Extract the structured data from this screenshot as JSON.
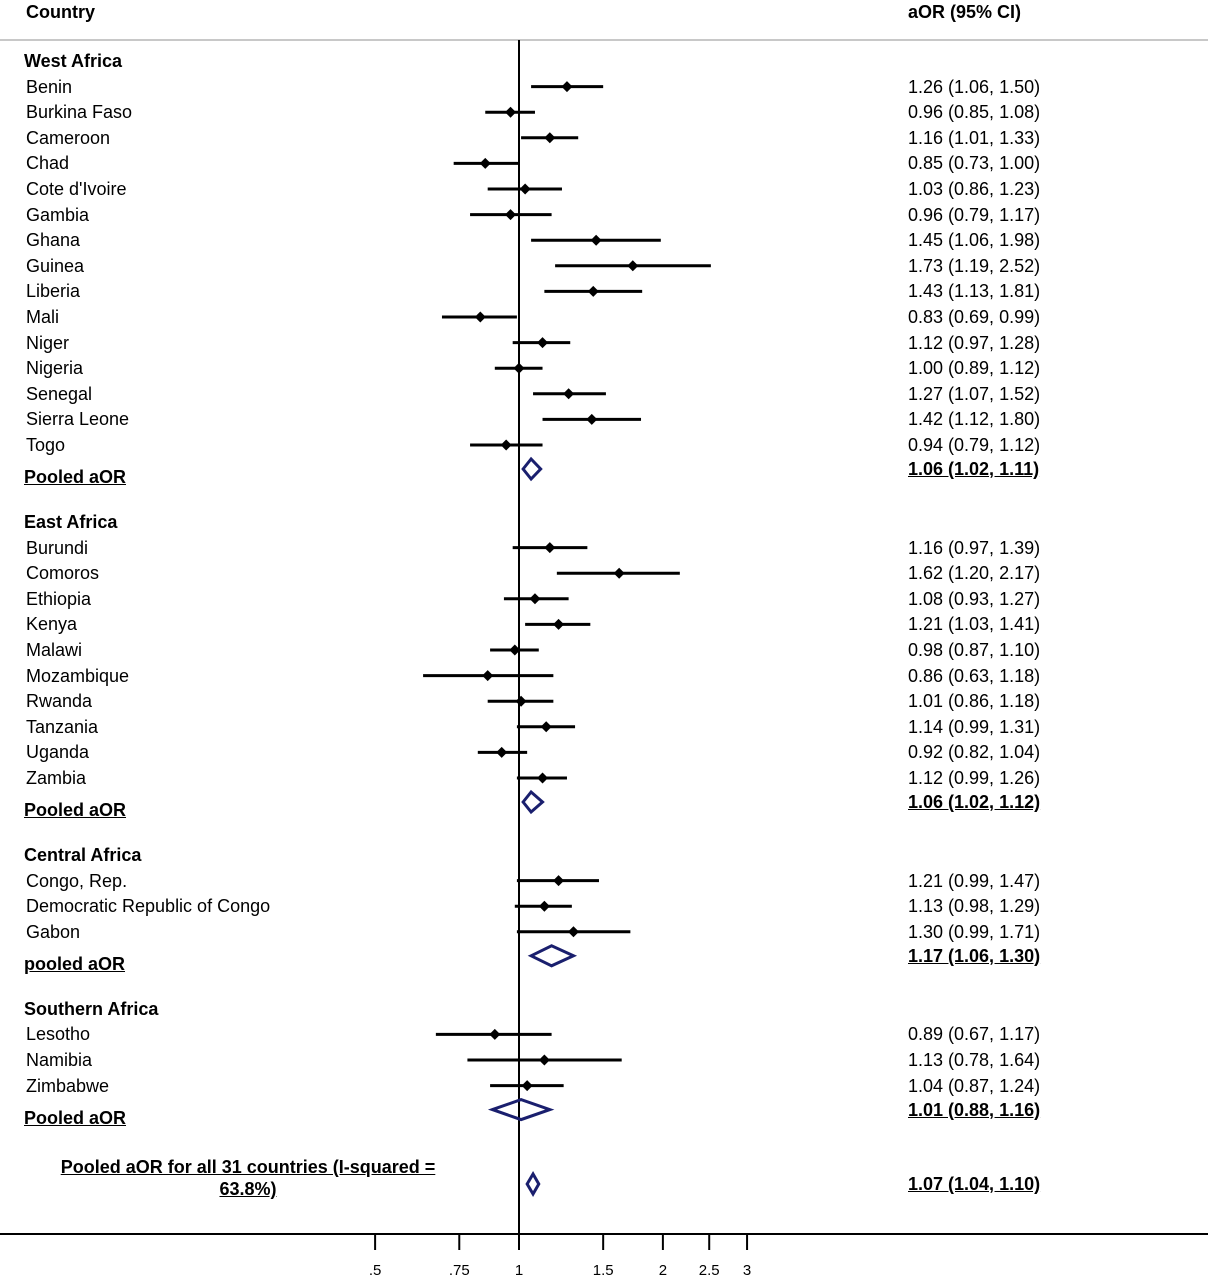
{
  "chart_data": {
    "type": "forest",
    "x_scale": "log",
    "reference_line": 1,
    "columns": {
      "label": "Country",
      "value": "aOR (95% CI)"
    },
    "x_ticks": [
      {
        "v": 0.5,
        "label": ".5"
      },
      {
        "v": 0.75,
        "label": ".75"
      },
      {
        "v": 1,
        "label": "1"
      },
      {
        "v": 1.5,
        "label": "1.5"
      },
      {
        "v": 2,
        "label": "2"
      },
      {
        "v": 2.5,
        "label": "2.5"
      },
      {
        "v": 3,
        "label": "3"
      }
    ],
    "rows": [
      {
        "kind": "group",
        "label": "West Africa"
      },
      {
        "kind": "study",
        "label": "Benin",
        "est": 1.26,
        "lo": 1.06,
        "hi": 1.5,
        "text": "1.26 (1.06, 1.50)"
      },
      {
        "kind": "study",
        "label": "Burkina Faso",
        "est": 0.96,
        "lo": 0.85,
        "hi": 1.08,
        "text": "0.96 (0.85, 1.08)"
      },
      {
        "kind": "study",
        "label": "Cameroon",
        "est": 1.16,
        "lo": 1.01,
        "hi": 1.33,
        "text": "1.16 (1.01, 1.33)"
      },
      {
        "kind": "study",
        "label": "Chad",
        "est": 0.85,
        "lo": 0.73,
        "hi": 1.0,
        "text": "0.85 (0.73, 1.00)"
      },
      {
        "kind": "study",
        "label": "Cote d'Ivoire",
        "est": 1.03,
        "lo": 0.86,
        "hi": 1.23,
        "text": "1.03 (0.86, 1.23)"
      },
      {
        "kind": "study",
        "label": "Gambia",
        "est": 0.96,
        "lo": 0.79,
        "hi": 1.17,
        "text": "0.96 (0.79, 1.17)"
      },
      {
        "kind": "study",
        "label": "Ghana",
        "est": 1.45,
        "lo": 1.06,
        "hi": 1.98,
        "text": "1.45 (1.06, 1.98)"
      },
      {
        "kind": "study",
        "label": "Guinea",
        "est": 1.73,
        "lo": 1.19,
        "hi": 2.52,
        "text": "1.73 (1.19, 2.52)"
      },
      {
        "kind": "study",
        "label": "Liberia",
        "est": 1.43,
        "lo": 1.13,
        "hi": 1.81,
        "text": "1.43 (1.13, 1.81)"
      },
      {
        "kind": "study",
        "label": "Mali",
        "est": 0.83,
        "lo": 0.69,
        "hi": 0.99,
        "text": "0.83 (0.69, 0.99)"
      },
      {
        "kind": "study",
        "label": "Niger",
        "est": 1.12,
        "lo": 0.97,
        "hi": 1.28,
        "text": "1.12 (0.97, 1.28)"
      },
      {
        "kind": "study",
        "label": "Nigeria",
        "est": 1.0,
        "lo": 0.89,
        "hi": 1.12,
        "text": "1.00 (0.89, 1.12)"
      },
      {
        "kind": "study",
        "label": "Senegal",
        "est": 1.27,
        "lo": 1.07,
        "hi": 1.52,
        "text": "1.27 (1.07, 1.52)"
      },
      {
        "kind": "study",
        "label": "Sierra Leone",
        "est": 1.42,
        "lo": 1.12,
        "hi": 1.8,
        "text": "1.42 (1.12, 1.80)"
      },
      {
        "kind": "study",
        "label": "Togo",
        "est": 0.94,
        "lo": 0.79,
        "hi": 1.12,
        "text": "0.94 (0.79, 1.12)"
      },
      {
        "kind": "pooled",
        "label": "Pooled aOR",
        "est": 1.06,
        "lo": 1.02,
        "hi": 1.11,
        "text": "1.06 (1.02, 1.11)"
      },
      {
        "kind": "group",
        "label": "East Africa"
      },
      {
        "kind": "study",
        "label": "Burundi",
        "est": 1.16,
        "lo": 0.97,
        "hi": 1.39,
        "text": "1.16 (0.97, 1.39)"
      },
      {
        "kind": "study",
        "label": "Comoros",
        "est": 1.62,
        "lo": 1.2,
        "hi": 2.17,
        "text": "1.62 (1.20, 2.17)"
      },
      {
        "kind": "study",
        "label": "Ethiopia",
        "est": 1.08,
        "lo": 0.93,
        "hi": 1.27,
        "text": "1.08 (0.93, 1.27)"
      },
      {
        "kind": "study",
        "label": "Kenya",
        "est": 1.21,
        "lo": 1.03,
        "hi": 1.41,
        "text": "1.21 (1.03, 1.41)"
      },
      {
        "kind": "study",
        "label": "Malawi",
        "est": 0.98,
        "lo": 0.87,
        "hi": 1.1,
        "text": "0.98 (0.87, 1.10)"
      },
      {
        "kind": "study",
        "label": "Mozambique",
        "est": 0.86,
        "lo": 0.63,
        "hi": 1.18,
        "text": "0.86 (0.63, 1.18)"
      },
      {
        "kind": "study",
        "label": "Rwanda",
        "est": 1.01,
        "lo": 0.86,
        "hi": 1.18,
        "text": "1.01 (0.86, 1.18)"
      },
      {
        "kind": "study",
        "label": "Tanzania",
        "est": 1.14,
        "lo": 0.99,
        "hi": 1.31,
        "text": "1.14 (0.99, 1.31)"
      },
      {
        "kind": "study",
        "label": "Uganda",
        "est": 0.92,
        "lo": 0.82,
        "hi": 1.04,
        "text": "0.92 (0.82, 1.04)"
      },
      {
        "kind": "study",
        "label": "Zambia",
        "est": 1.12,
        "lo": 0.99,
        "hi": 1.26,
        "text": "1.12 (0.99, 1.26)"
      },
      {
        "kind": "pooled",
        "label": "Pooled aOR",
        "est": 1.06,
        "lo": 1.02,
        "hi": 1.12,
        "text": "1.06 (1.02, 1.12)"
      },
      {
        "kind": "group",
        "label": "Central Africa"
      },
      {
        "kind": "study",
        "label": "Congo, Rep.",
        "est": 1.21,
        "lo": 0.99,
        "hi": 1.47,
        "text": "1.21 (0.99, 1.47)"
      },
      {
        "kind": "study",
        "label": "Democratic Republic of Congo",
        "est": 1.13,
        "lo": 0.98,
        "hi": 1.29,
        "text": "1.13 (0.98, 1.29)"
      },
      {
        "kind": "study",
        "label": "Gabon",
        "est": 1.3,
        "lo": 0.99,
        "hi": 1.71,
        "text": "1.30 (0.99, 1.71)"
      },
      {
        "kind": "pooled",
        "label": "pooled aOR",
        "est": 1.17,
        "lo": 1.06,
        "hi": 1.3,
        "text": "1.17 (1.06, 1.30)"
      },
      {
        "kind": "group",
        "label": "Southern Africa"
      },
      {
        "kind": "study",
        "label": "Lesotho",
        "est": 0.89,
        "lo": 0.67,
        "hi": 1.17,
        "text": "0.89 (0.67, 1.17)"
      },
      {
        "kind": "study",
        "label": "Namibia",
        "est": 1.13,
        "lo": 0.78,
        "hi": 1.64,
        "text": "1.13 (0.78, 1.64)"
      },
      {
        "kind": "study",
        "label": "Zimbabwe",
        "est": 1.04,
        "lo": 0.87,
        "hi": 1.24,
        "text": "1.04 (0.87, 1.24)"
      },
      {
        "kind": "pooled",
        "label": "Pooled aOR",
        "est": 1.01,
        "lo": 0.88,
        "hi": 1.16,
        "text": "1.01 (0.88, 1.16)"
      },
      {
        "kind": "overall",
        "label": "Pooled aOR for all 31 countries (I-squared = 63.8%)",
        "est": 1.07,
        "lo": 1.04,
        "hi": 1.1,
        "text": "1.07 (1.04, 1.10)"
      }
    ],
    "colors": {
      "marker": "#000000",
      "pooled_diamond": "#1a1f6e",
      "divider": "#c8c8c8"
    }
  }
}
